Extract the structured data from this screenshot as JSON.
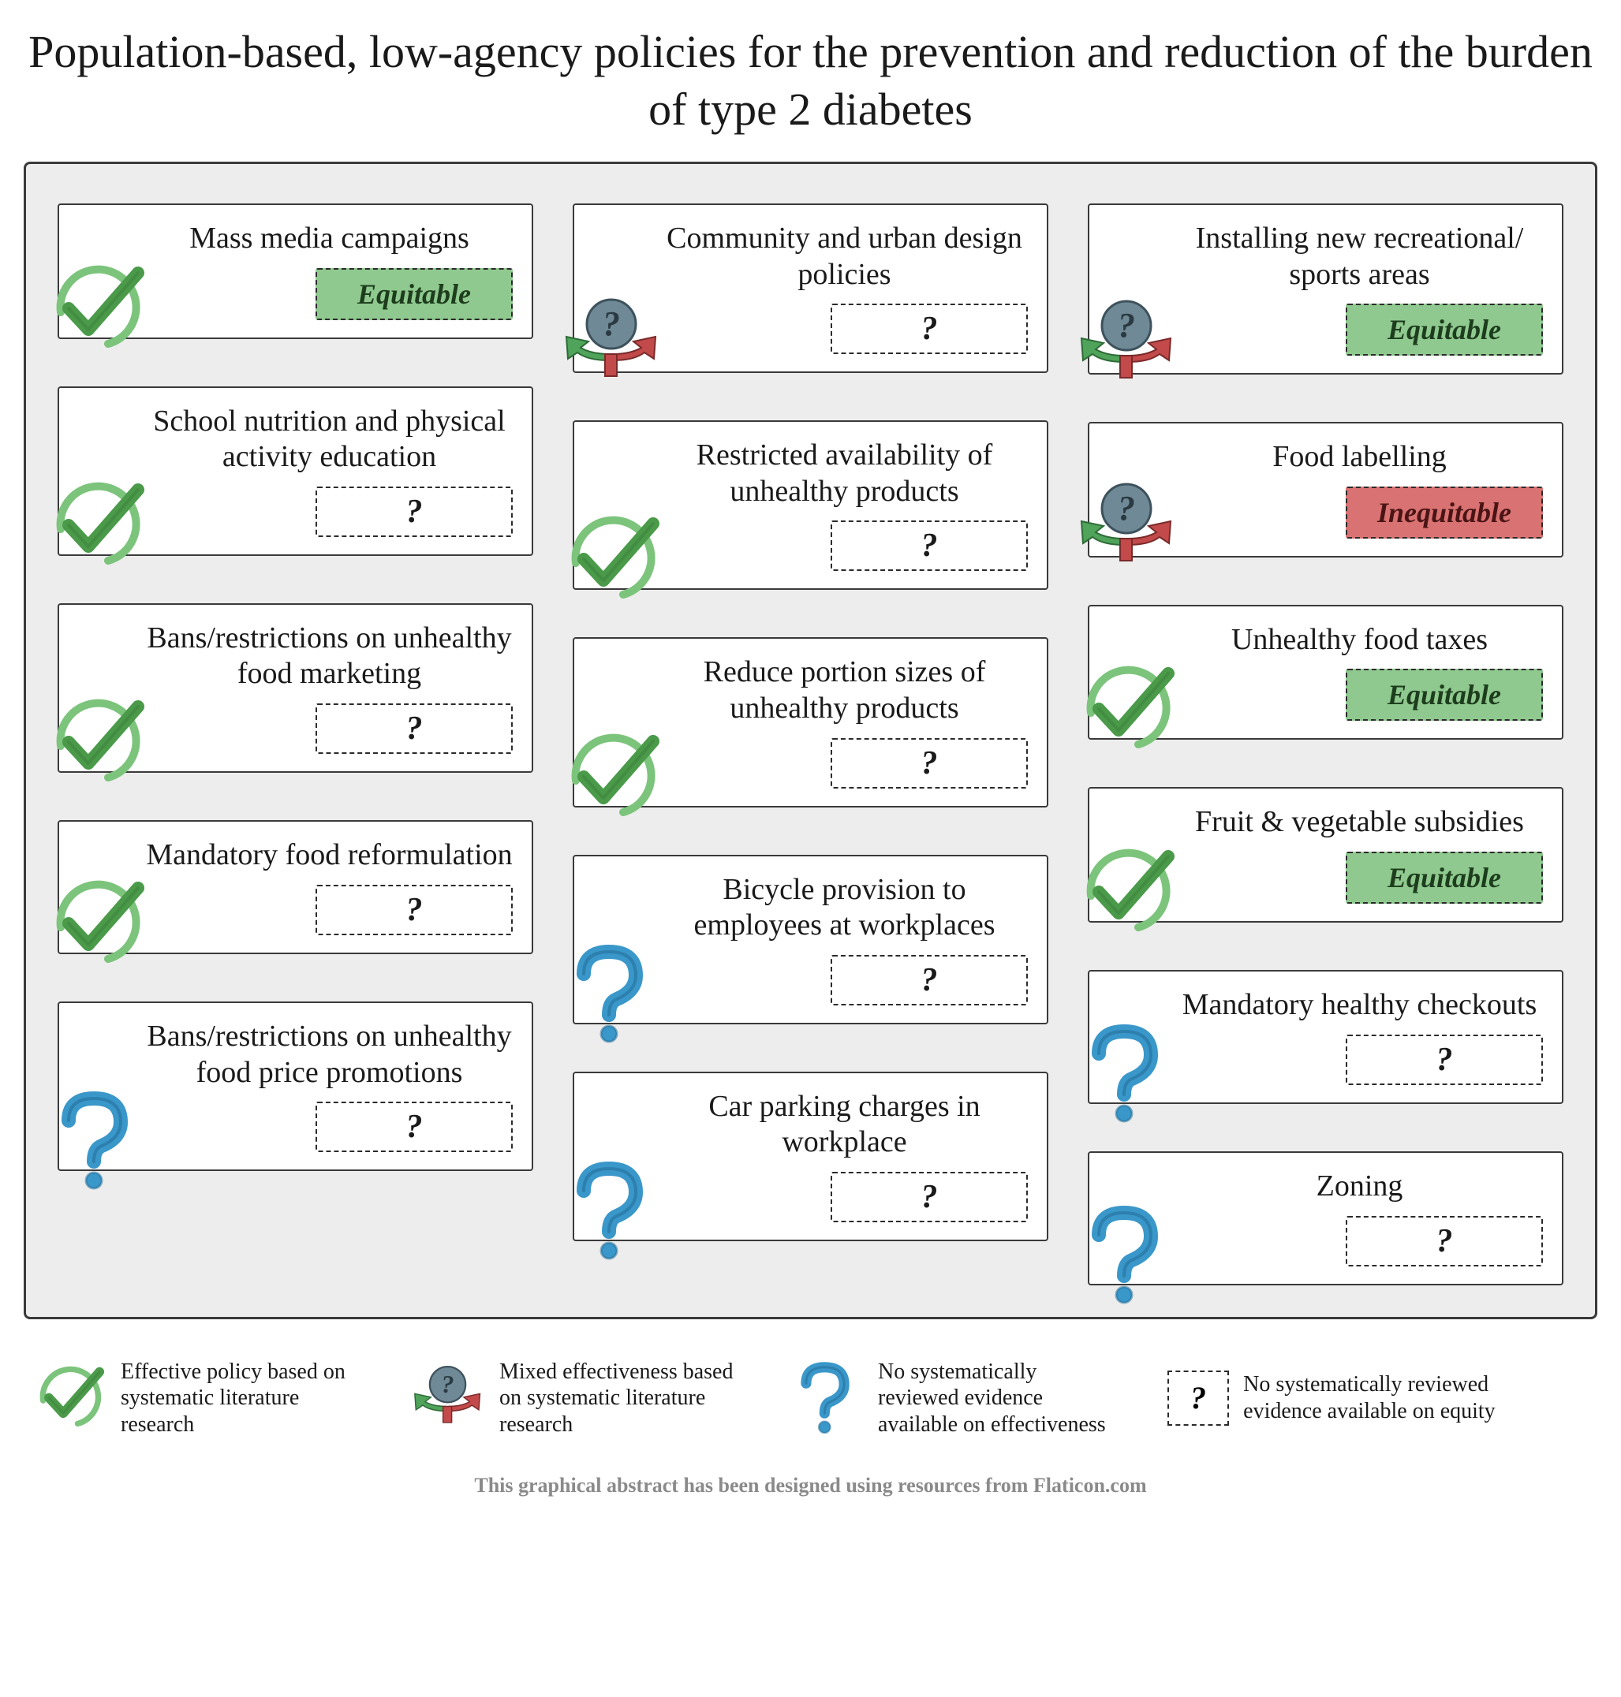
{
  "title": "Population-based, low-agency policies for the prevention and reduction of the burden of type 2 diabetes",
  "colors": {
    "background": "#ffffff",
    "frame_bg": "#ededed",
    "frame_border": "#3a3a3a",
    "card_bg": "#ffffff",
    "card_border": "#3a3a3a",
    "text": "#1a1a1a",
    "equitable_bg": "#8fc98f",
    "equitable_text": "#1d3d1d",
    "inequitable_bg": "#d97272",
    "inequitable_text": "#4a1414",
    "check_green": "#5aa85a",
    "check_ring": "#7cc47c",
    "mixed_circle": "#6f8a96",
    "mixed_green": "#4fa35a",
    "mixed_red": "#c24a4a",
    "question_blue": "#3a97c9",
    "attribution": "#8a8a8a"
  },
  "typography": {
    "title_fontsize": 58,
    "card_title_fontsize": 38,
    "badge_fontsize": 36,
    "legend_fontsize": 28,
    "attribution_fontsize": 26,
    "font_family": "Georgia, serif"
  },
  "icon_types": {
    "effective": "green checkmark in open circle",
    "mixed": "grey question circle over red+green diverging arrows",
    "no_evidence": "blue question mark"
  },
  "equity_types": {
    "equitable": {
      "label": "Equitable",
      "class": "equitable"
    },
    "inequitable": {
      "label": "Inequitable",
      "class": "inequitable"
    },
    "unknown": {
      "label": "?",
      "class": "unknown"
    }
  },
  "columns": [
    [
      {
        "title": "Mass media campaigns",
        "icon": "effective",
        "equity": "equitable"
      },
      {
        "title": "School nutrition and physical activity education",
        "icon": "effective",
        "equity": "unknown"
      },
      {
        "title": "Bans/restrictions on unhealthy food marketing",
        "icon": "effective",
        "equity": "unknown"
      },
      {
        "title": "Mandatory food reformulation",
        "icon": "effective",
        "equity": "unknown"
      },
      {
        "title": "Bans/restrictions on unhealthy food price promotions",
        "icon": "no_evidence",
        "equity": "unknown"
      }
    ],
    [
      {
        "title": "Community and urban design policies",
        "icon": "mixed",
        "equity": "unknown"
      },
      {
        "title": "Restricted availability of unhealthy products",
        "icon": "effective",
        "equity": "unknown"
      },
      {
        "title": "Reduce portion sizes of unhealthy products",
        "icon": "effective",
        "equity": "unknown"
      },
      {
        "title": "Bicycle provision to employees at workplaces",
        "icon": "no_evidence",
        "equity": "unknown"
      },
      {
        "title": "Car parking charges in workplace",
        "icon": "no_evidence",
        "equity": "unknown"
      }
    ],
    [
      {
        "title": "Installing new recreational/ sports areas",
        "icon": "mixed",
        "equity": "equitable"
      },
      {
        "title": "Food labelling",
        "icon": "mixed",
        "equity": "inequitable"
      },
      {
        "title": "Unhealthy food taxes",
        "icon": "effective",
        "equity": "equitable",
        "compact": true
      },
      {
        "title": "Fruit & vegetable subsidies",
        "icon": "effective",
        "equity": "equitable",
        "compact": true
      },
      {
        "title": "Mandatory healthy checkouts",
        "icon": "no_evidence",
        "equity": "unknown"
      },
      {
        "title": "Zoning",
        "icon": "no_evidence",
        "equity": "unknown",
        "compact": true
      }
    ]
  ],
  "legend": [
    {
      "icon": "effective",
      "text": "Effective policy based on systematic literature research"
    },
    {
      "icon": "mixed",
      "text": "Mixed effectiveness based on systematic literature research"
    },
    {
      "icon": "no_evidence",
      "text": "No systematically reviewed evidence available on effectiveness"
    },
    {
      "icon": "unknown_badge",
      "text": "No systematically reviewed evidence available on equity"
    }
  ],
  "attribution": "This graphical abstract has been designed using resources from Flaticon.com"
}
